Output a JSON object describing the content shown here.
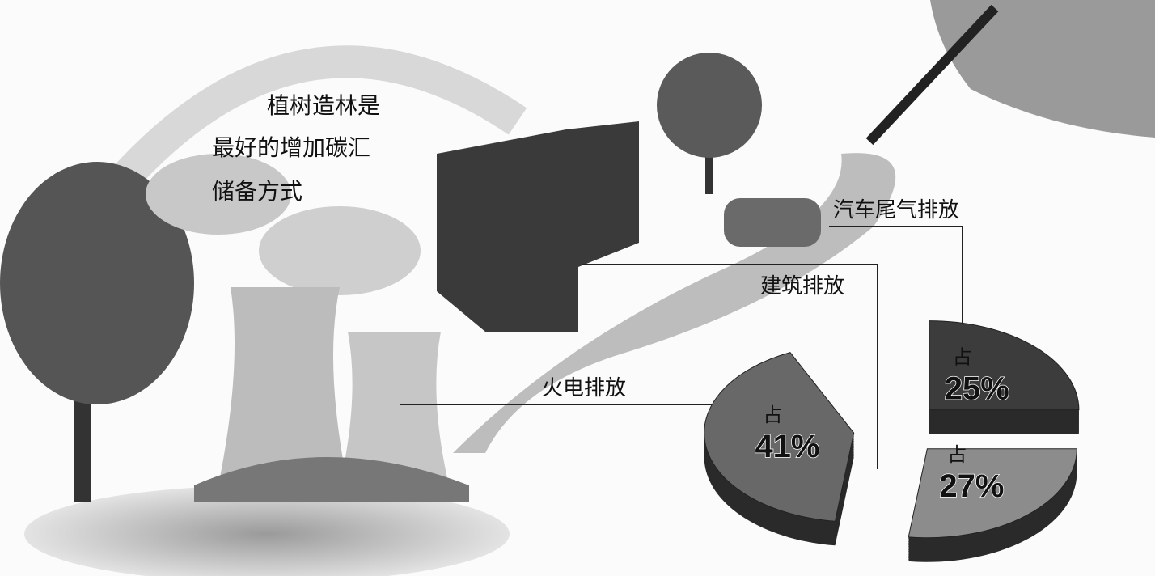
{
  "chart_data": {
    "type": "pie",
    "annotation": [
      "植树造林是",
      "最好的增加碳汇",
      "储备方式"
    ],
    "categories": [
      "汽车尾气排放",
      "建筑排放",
      "火电排放"
    ],
    "values": [
      25,
      27,
      41
    ],
    "value_prefix": "占",
    "value_labels": [
      "25%",
      "27%",
      "41%"
    ],
    "colors": [
      "#3c3c3c",
      "#8c8c8c",
      "#686868"
    ]
  }
}
